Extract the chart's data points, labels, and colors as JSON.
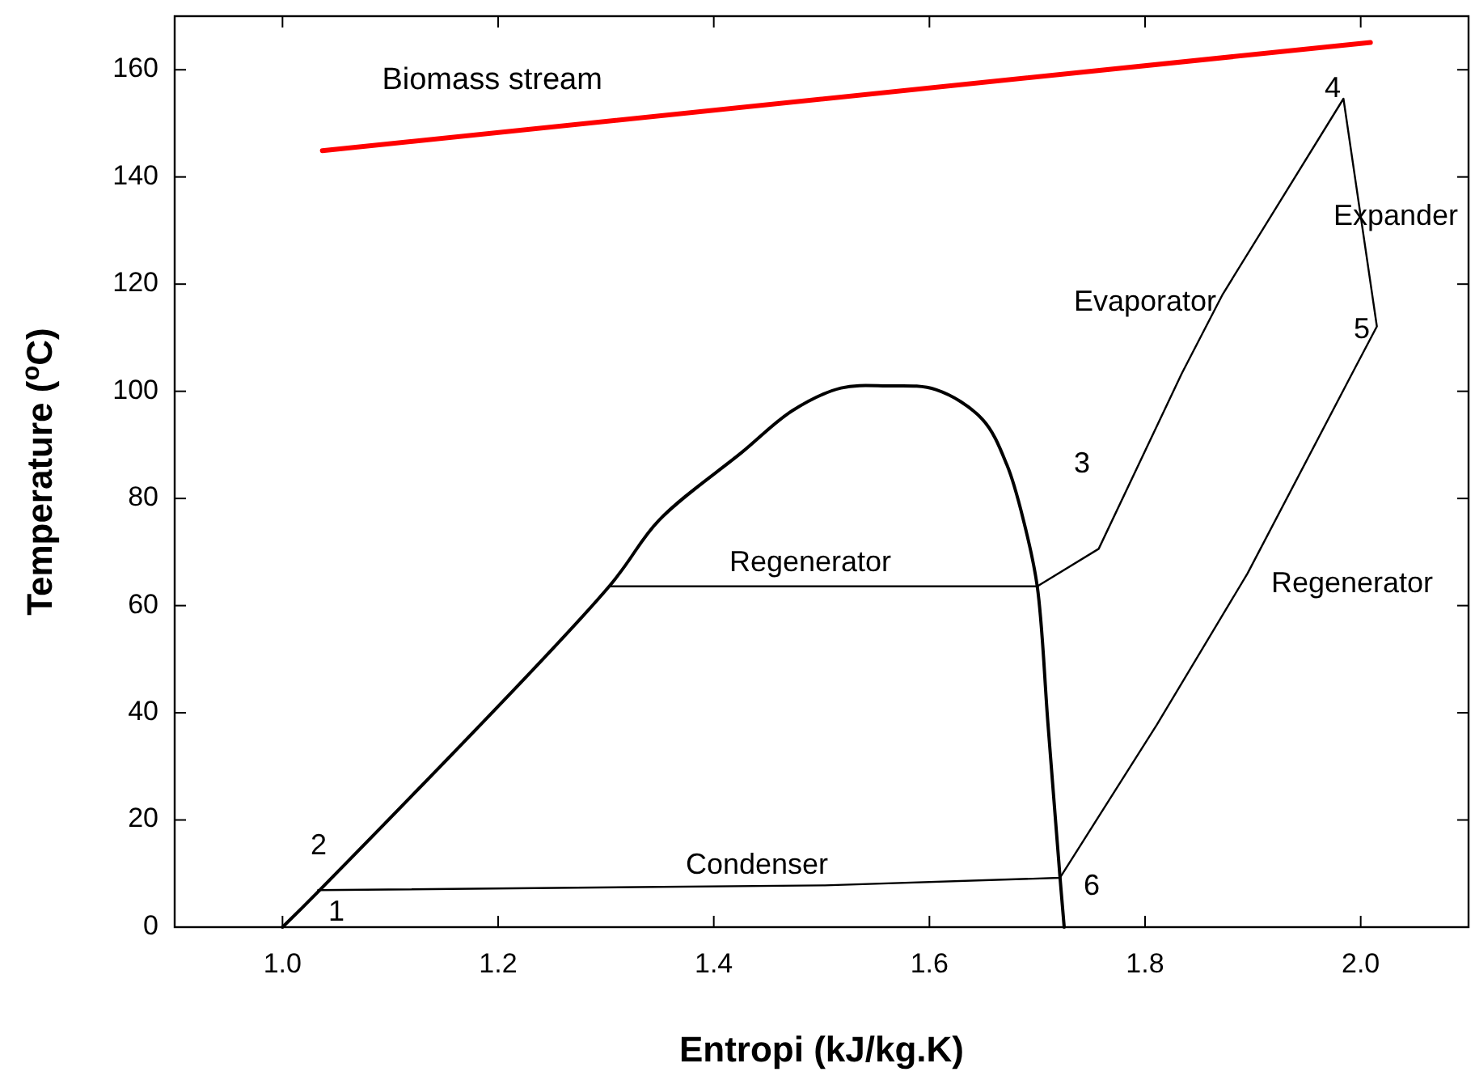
{
  "chart_data": {
    "type": "line",
    "xlabel": "Entropi (kJ/kg.K)",
    "ylabel": "Temperature ($^{o}$C)",
    "xlim": [
      0.9,
      2.1
    ],
    "ylim": [
      0,
      170
    ],
    "xticks": [
      {
        "value": 1,
        "label": "1.0"
      },
      1.2,
      1.4,
      1.6,
      1.8,
      {
        "value": 2,
        "label": "2.0"
      }
    ],
    "yticks": [
      0,
      20,
      40,
      60,
      80,
      100,
      120,
      140,
      160
    ],
    "series": [
      {
        "name": "Biomass stream",
        "color": "#ff0000",
        "x": [
          1.037,
          2.009
        ],
        "values": [
          144.9,
          165.1
        ]
      },
      {
        "color": "#000000",
        "x": [
          1.0,
          1.035,
          1.303,
          1.349,
          1.426,
          1.473,
          1.518,
          1.56,
          1.606,
          1.649,
          1.672,
          1.688,
          1.7,
          1.71,
          1.721,
          1.725
        ],
        "values": [
          0,
          7,
          63.6,
          75.9,
          88.6,
          96.4,
          100.6,
          101,
          100.3,
          94.8,
          86.2,
          75.3,
          63.6,
          37.8,
          9.6,
          0
        ]
      },
      {
        "color": "#000000",
        "x": [
          1.303,
          1.7
        ],
        "values": [
          63.6,
          63.6
        ]
      },
      {
        "color": "#000000",
        "x": [
          1.7,
          1.757,
          1.834,
          1.872,
          1.984,
          2.015,
          1.992,
          1.895,
          1.811,
          1.721,
          1.503,
          1.033
        ],
        "values": [
          63.6,
          70.6,
          103.3,
          118.1,
          154.6,
          112.1,
          103.3,
          66,
          37.8,
          9.2,
          7.8,
          6.9
        ]
      }
    ],
    "annotations": [
      "1",
      "2",
      "3",
      "4",
      "5",
      "6",
      "Regenerator",
      "Condenser",
      "Regenerator",
      "Evaporator",
      "Expander"
    ]
  }
}
